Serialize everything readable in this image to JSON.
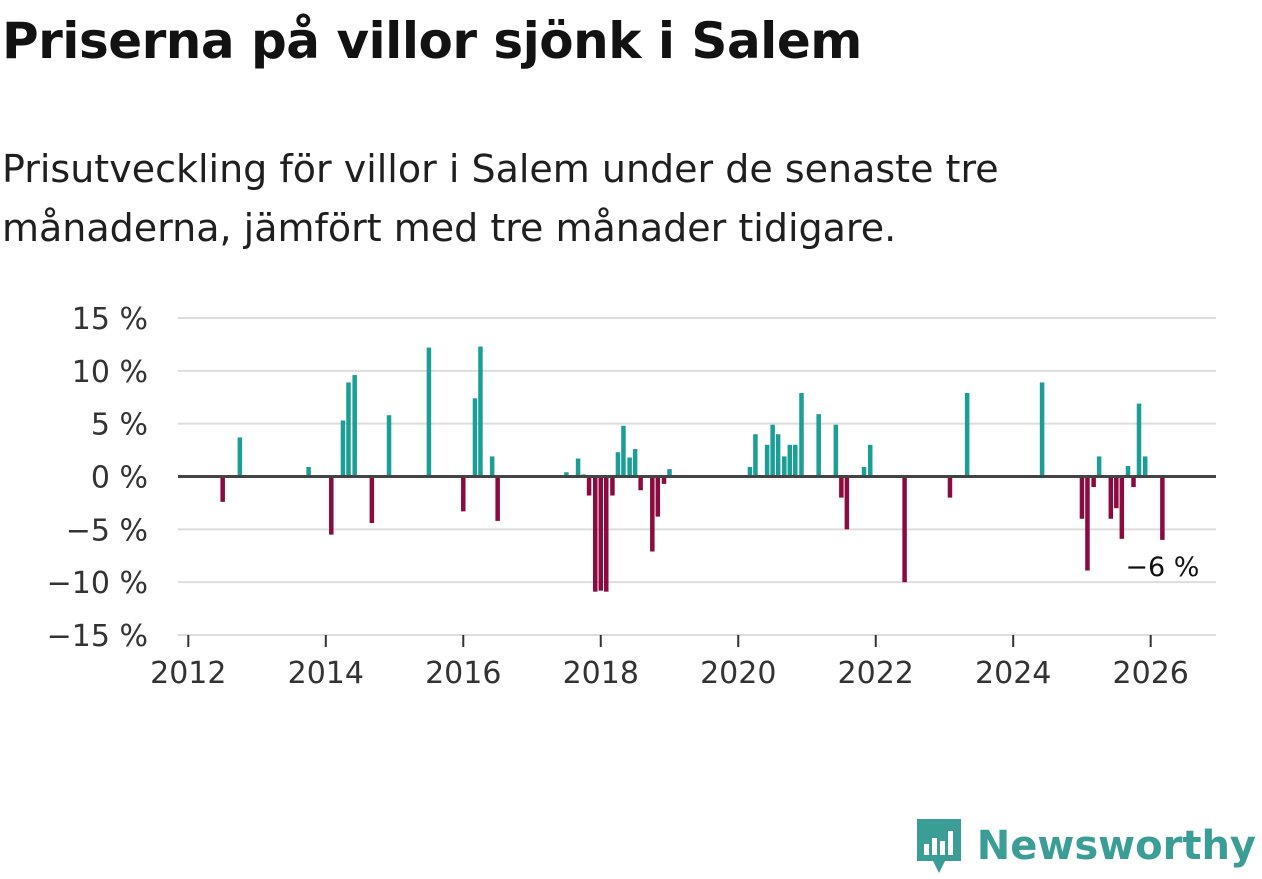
{
  "header": {
    "title": "Priserna på villor sjönk i Salem",
    "subtitle": "Prisutveckling för villor i Salem under de senaste tre månaderna, jämfört med tre månader tidigare."
  },
  "brand": {
    "name": "Newsworthy",
    "icon": "newsworthy-logo-icon"
  },
  "colors": {
    "positive": "#1a9e96",
    "negative": "#8b0a3f",
    "zero_line": "#444444",
    "grid": "#dddddd"
  },
  "chart_data": {
    "type": "bar",
    "title": "Priserna på villor sjönk i Salem",
    "xlabel": "",
    "ylabel": "",
    "xlim": [
      2011.85,
      2026.95
    ],
    "ylim": [
      -15,
      15
    ],
    "y_ticks": [
      15,
      10,
      5,
      0,
      -5,
      -10,
      -15
    ],
    "y_tick_labels": [
      "15 %",
      "10 %",
      "5 %",
      "0 %",
      "−5 %",
      "−10 %",
      "−15 %"
    ],
    "x_ticks": [
      2012,
      2014,
      2016,
      2018,
      2020,
      2022,
      2024,
      2026
    ],
    "x_tick_labels": [
      "2012",
      "2014",
      "2016",
      "2018",
      "2020",
      "2022",
      "2024",
      "2026"
    ],
    "annotation": {
      "text": "−6 %",
      "x": 2026.17,
      "y": -6
    },
    "series": [
      {
        "name": "Prisutveckling",
        "points": [
          {
            "x": 2012.5,
            "y": -2.4
          },
          {
            "x": 2012.75,
            "y": 3.7
          },
          {
            "x": 2013.75,
            "y": 0.9
          },
          {
            "x": 2014.08,
            "y": -5.5
          },
          {
            "x": 2014.25,
            "y": 5.3
          },
          {
            "x": 2014.33,
            "y": 8.9
          },
          {
            "x": 2014.42,
            "y": 9.6
          },
          {
            "x": 2014.67,
            "y": -4.4
          },
          {
            "x": 2014.92,
            "y": 5.8
          },
          {
            "x": 2015.5,
            "y": 12.2
          },
          {
            "x": 2016.0,
            "y": -3.3
          },
          {
            "x": 2016.17,
            "y": 7.4
          },
          {
            "x": 2016.25,
            "y": 12.3
          },
          {
            "x": 2016.42,
            "y": 1.9
          },
          {
            "x": 2016.5,
            "y": -4.2
          },
          {
            "x": 2017.5,
            "y": 0.4
          },
          {
            "x": 2017.67,
            "y": 1.7
          },
          {
            "x": 2017.75,
            "y": 0.2
          },
          {
            "x": 2017.83,
            "y": -1.8
          },
          {
            "x": 2017.92,
            "y": -10.9
          },
          {
            "x": 2018.0,
            "y": -10.8
          },
          {
            "x": 2018.08,
            "y": -10.9
          },
          {
            "x": 2018.17,
            "y": -1.8
          },
          {
            "x": 2018.25,
            "y": 2.3
          },
          {
            "x": 2018.33,
            "y": 4.8
          },
          {
            "x": 2018.42,
            "y": 1.8
          },
          {
            "x": 2018.5,
            "y": 2.6
          },
          {
            "x": 2018.58,
            "y": -1.3
          },
          {
            "x": 2018.75,
            "y": -7.1
          },
          {
            "x": 2018.83,
            "y": -3.8
          },
          {
            "x": 2018.92,
            "y": -0.7
          },
          {
            "x": 2019.0,
            "y": 0.7
          },
          {
            "x": 2020.17,
            "y": 0.9
          },
          {
            "x": 2020.25,
            "y": 4.0
          },
          {
            "x": 2020.42,
            "y": 3.0
          },
          {
            "x": 2020.5,
            "y": 4.9
          },
          {
            "x": 2020.58,
            "y": 4.0
          },
          {
            "x": 2020.67,
            "y": 1.9
          },
          {
            "x": 2020.75,
            "y": 3.0
          },
          {
            "x": 2020.83,
            "y": 3.0
          },
          {
            "x": 2020.92,
            "y": 7.9
          },
          {
            "x": 2021.17,
            "y": 5.9
          },
          {
            "x": 2021.42,
            "y": 4.9
          },
          {
            "x": 2021.5,
            "y": -2.0
          },
          {
            "x": 2021.58,
            "y": -5.0
          },
          {
            "x": 2021.83,
            "y": 0.9
          },
          {
            "x": 2021.92,
            "y": 3.0
          },
          {
            "x": 2022.42,
            "y": -10.0
          },
          {
            "x": 2023.08,
            "y": -2.0
          },
          {
            "x": 2023.33,
            "y": 7.9
          },
          {
            "x": 2024.42,
            "y": 8.9
          },
          {
            "x": 2025.0,
            "y": -4.0
          },
          {
            "x": 2025.08,
            "y": -8.9
          },
          {
            "x": 2025.17,
            "y": -1.0
          },
          {
            "x": 2025.25,
            "y": 1.9
          },
          {
            "x": 2025.42,
            "y": -4.0
          },
          {
            "x": 2025.5,
            "y": -3.0
          },
          {
            "x": 2025.58,
            "y": -5.9
          },
          {
            "x": 2025.67,
            "y": 1.0
          },
          {
            "x": 2025.75,
            "y": -1.0
          },
          {
            "x": 2025.83,
            "y": 6.9
          },
          {
            "x": 2025.92,
            "y": 1.9
          },
          {
            "x": 2026.17,
            "y": -6.0
          }
        ]
      }
    ]
  }
}
